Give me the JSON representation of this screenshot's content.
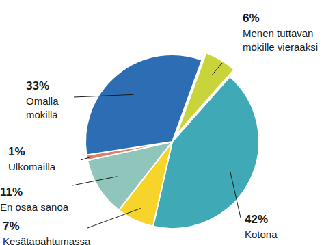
{
  "chart_data": {
    "type": "pie",
    "categories": [
      "Menen tuttavan mökille vieraaksi",
      "Kotona",
      "Kesätapahtumassa",
      "En osaa sanoa",
      "Ulkomailla",
      "Omalla mökillä"
    ],
    "values": [
      6,
      42,
      7,
      11,
      1,
      33
    ],
    "value_labels": [
      "6%",
      "42%",
      "7%",
      "11%",
      "1%",
      "33%"
    ],
    "colors": [
      "#c9d43b",
      "#3fa9b6",
      "#f7d42a",
      "#90c5bc",
      "#d9836f",
      "#2c6db3"
    ],
    "data_labels": true
  }
}
